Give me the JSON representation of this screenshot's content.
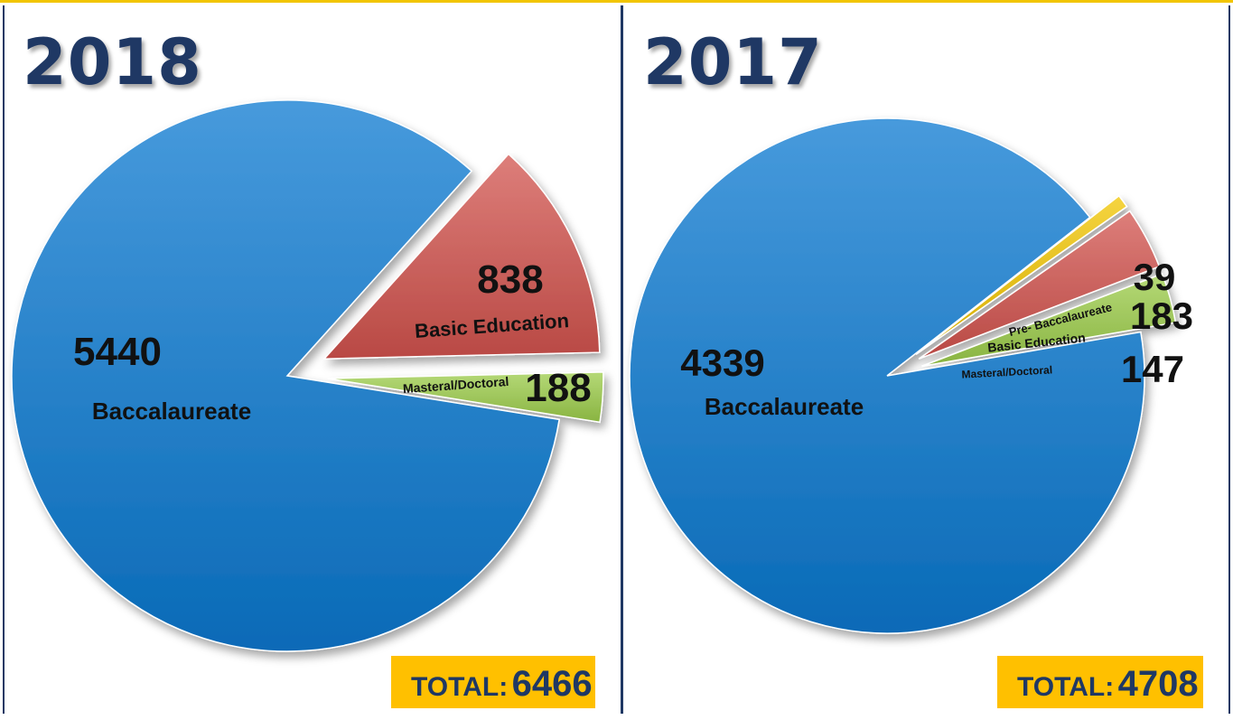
{
  "charts": [
    {
      "year": "2018",
      "total_label": "TOTAL:",
      "total_value": "6466"
    },
    {
      "year": "2017",
      "total_label": "TOTAL:",
      "total_value": "4708"
    }
  ],
  "chart_data": [
    {
      "type": "pie",
      "title": "2018",
      "categories": [
        "Baccalaureate",
        "Basic Education",
        "Masteral/Doctoral"
      ],
      "values": [
        5440,
        838,
        188
      ],
      "colors": [
        "#0a78d0",
        "#d2534d",
        "#9ccc4a"
      ],
      "total": 6466
    },
    {
      "type": "pie",
      "title": "2017",
      "categories": [
        "Baccalaureate",
        "Pre- Baccalaureate",
        "Basic Education",
        "Masteral/Doctoral"
      ],
      "values": [
        4339,
        39,
        183,
        147
      ],
      "colors": [
        "#0a78d0",
        "#f2c500",
        "#d2534d",
        "#9ccc4a"
      ],
      "total": 4708
    }
  ]
}
